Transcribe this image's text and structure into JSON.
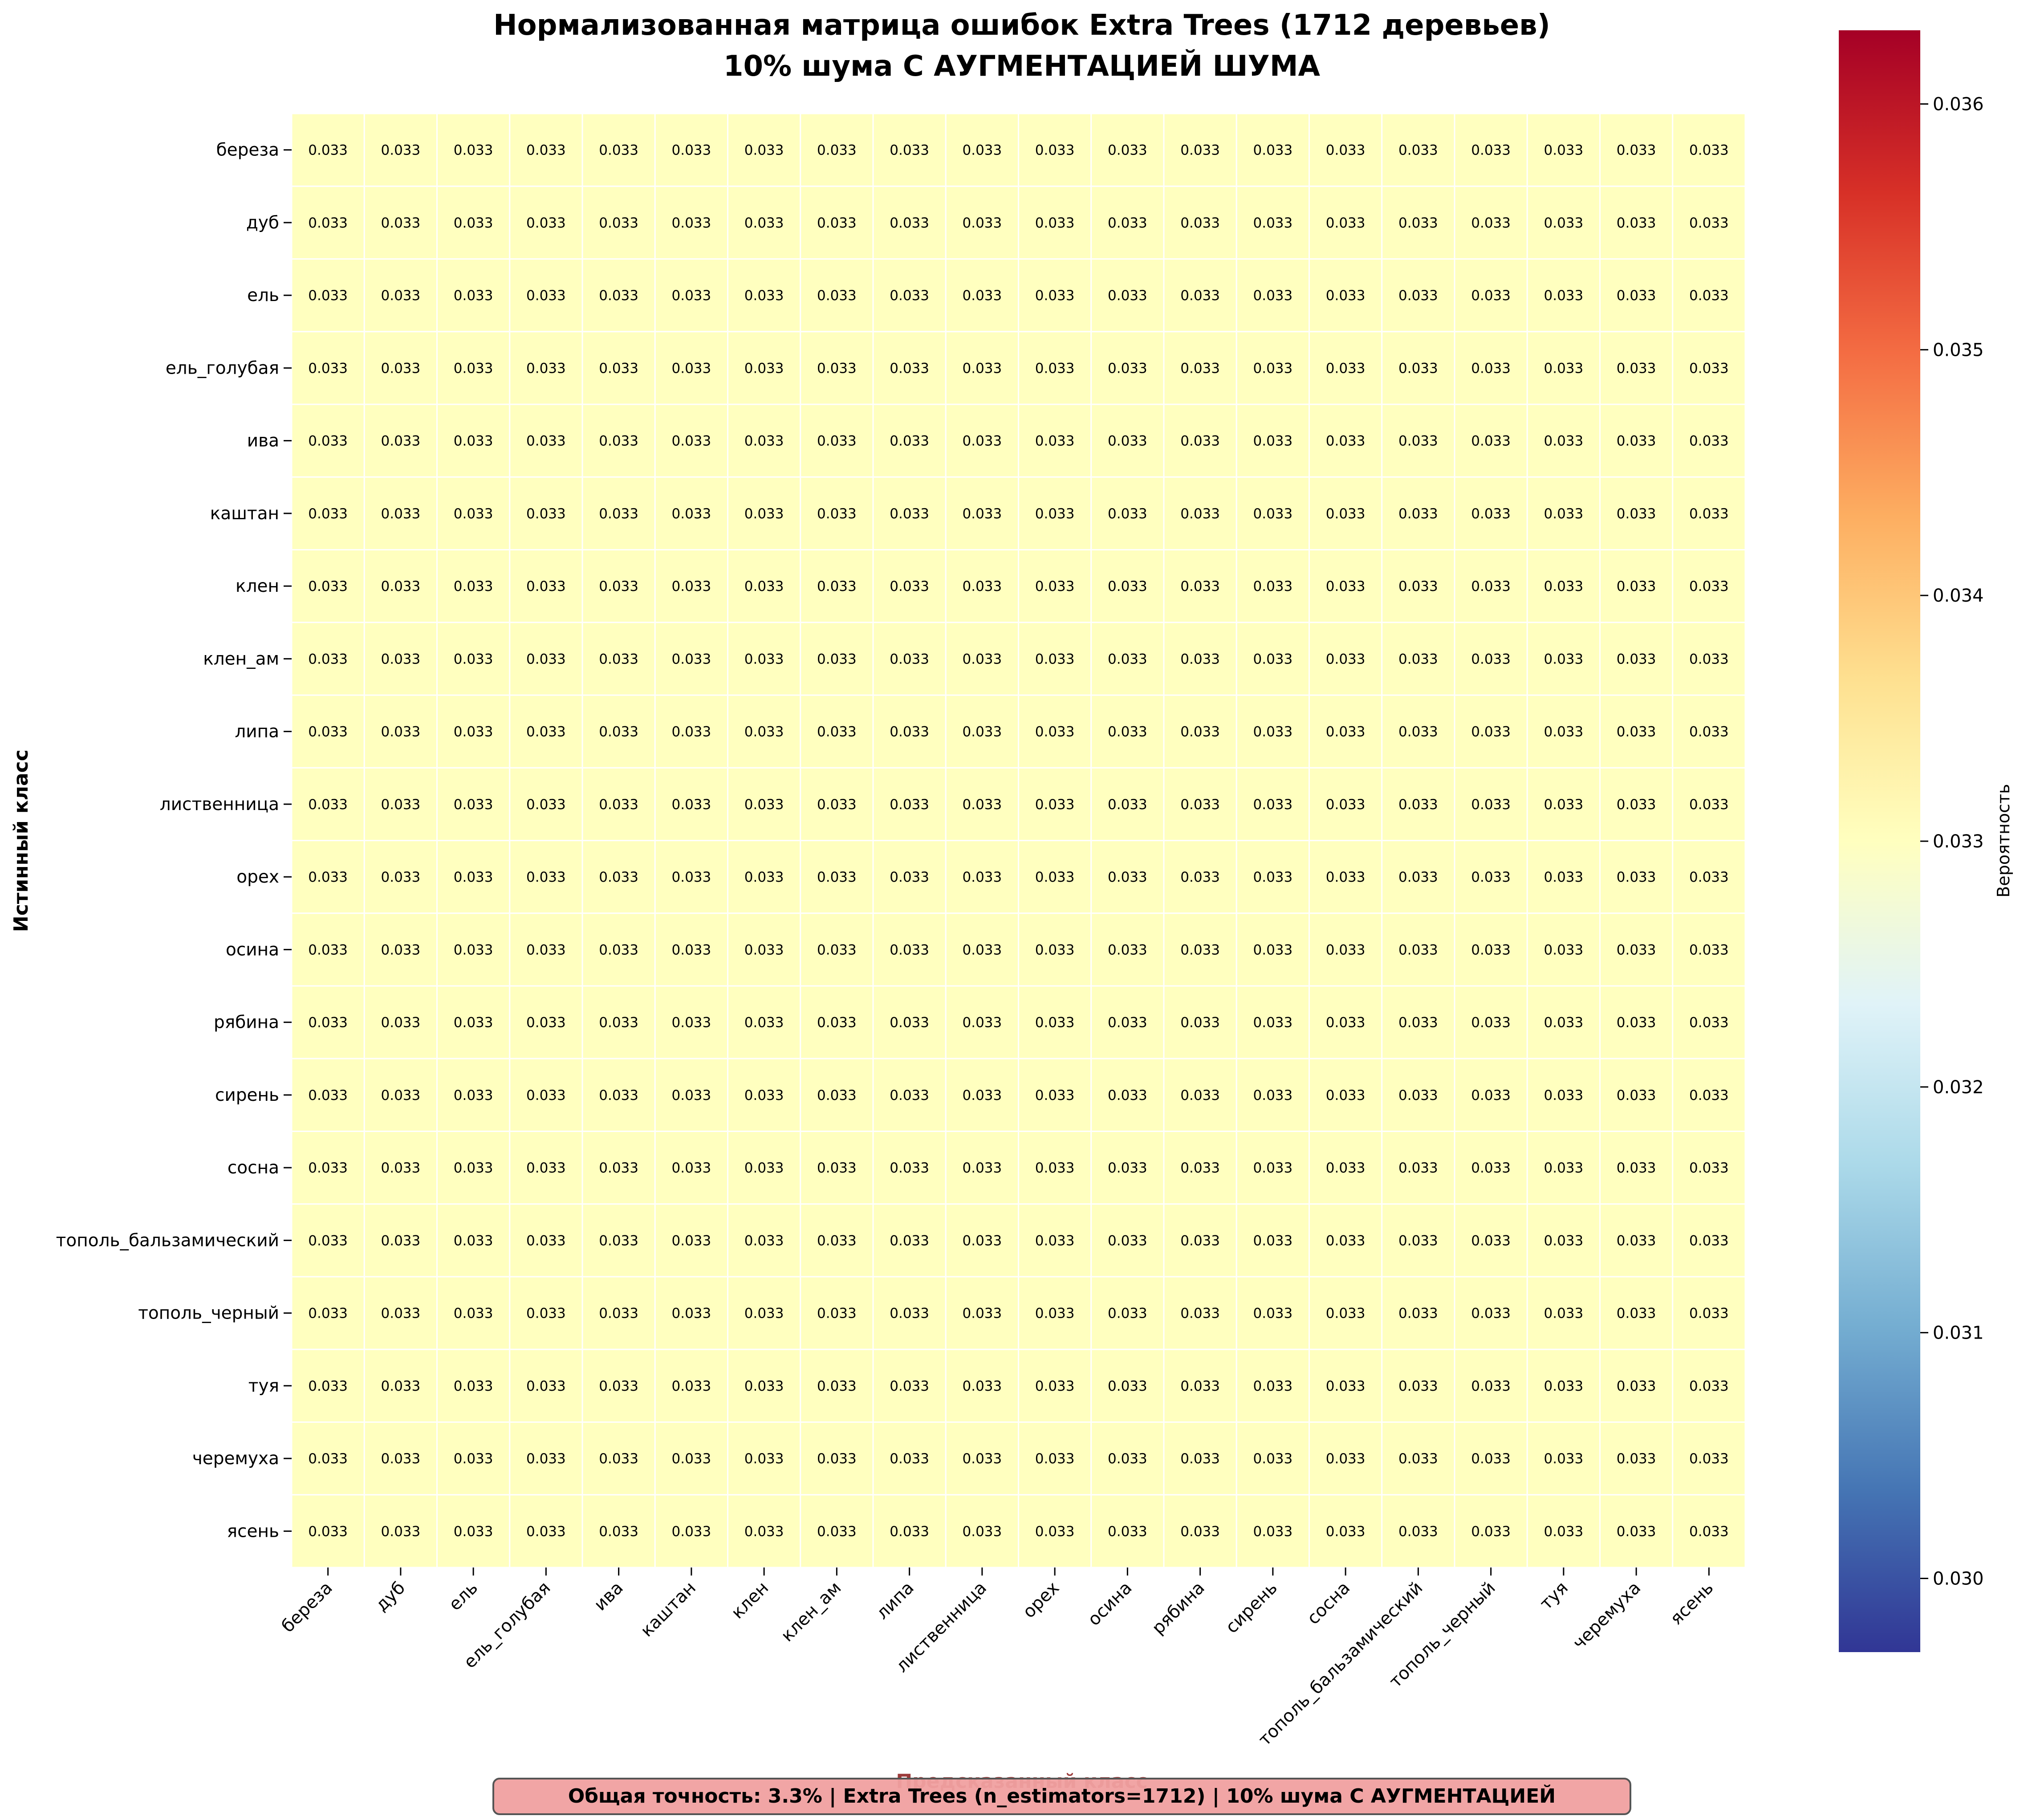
{
  "chart_data": {
    "type": "heatmap",
    "title": "Нормализованная матрица ошибок Extra Trees (1712 деревьев)",
    "subtitle": "10% шума С АУГМЕНТАЦИЕЙ ШУМА",
    "xlabel": "Предсказанный класс",
    "ylabel": "Истинный класс",
    "classes": [
      "береза",
      "дуб",
      "ель",
      "ель_голубая",
      "ива",
      "каштан",
      "клен",
      "клен_ам",
      "липа",
      "лиственница",
      "орех",
      "осина",
      "рябина",
      "сирень",
      "сосна",
      "тополь_бальзамический",
      "тополь_черный",
      "туя",
      "черемуха",
      "ясень"
    ],
    "cell_value": 0.033,
    "cell_label": "0.033",
    "colorbar": {
      "label": "Вероятность",
      "min": 0.0297,
      "max": 0.0363,
      "ticks": [
        "0.030",
        "0.031",
        "0.032",
        "0.033",
        "0.034",
        "0.035",
        "0.036"
      ],
      "colormap": "RdYlBu_r"
    },
    "footer": "Общая точность: 3.3% | Extra Trees (n_estimators=1712) | 10% шума С АУГМЕНТАЦИЕЙ"
  },
  "colors": {
    "cell_fill": "#ffffbf",
    "footer_bg": "#f0a0a0",
    "footer_border": "#555555",
    "xlabel_color": "#8b1a1a"
  }
}
